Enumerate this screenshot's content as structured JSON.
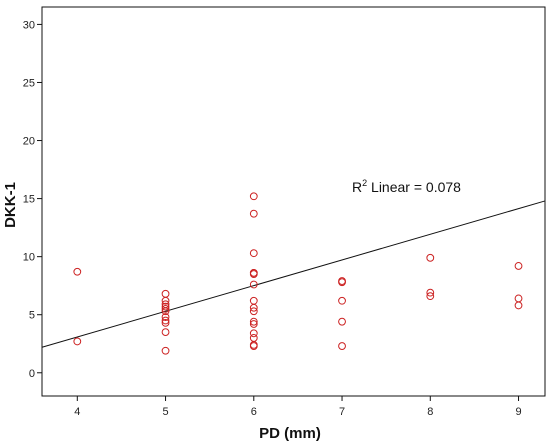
{
  "chart_data": {
    "type": "scatter",
    "title": "",
    "xlabel": "PD (mm)",
    "ylabel": "DKK-1",
    "xlim": [
      3.6,
      9.3
    ],
    "ylim": [
      -2,
      31.5
    ],
    "x_ticks": [
      4,
      5,
      6,
      7,
      8,
      9
    ],
    "y_ticks": [
      0,
      5,
      10,
      15,
      20,
      25,
      30
    ],
    "grid": false,
    "legend": "none",
    "marker_color": "#cc2222",
    "line_color": "#111111",
    "x": [
      4,
      4,
      5,
      5,
      5,
      5,
      5,
      5,
      5,
      5,
      5,
      5,
      5,
      6,
      6,
      6,
      6,
      6,
      6,
      6,
      6,
      6,
      6,
      6,
      6,
      6,
      6,
      6,
      6,
      7,
      7,
      7,
      7,
      7,
      8,
      8,
      8,
      9,
      9,
      9
    ],
    "y": [
      8.7,
      2.7,
      6.8,
      6.2,
      5.7,
      5.5,
      5.3,
      4.8,
      4.5,
      4.3,
      3.5,
      1.9,
      5.9,
      15.2,
      13.7,
      10.3,
      8.6,
      8.5,
      7.6,
      5.6,
      5.3,
      4.4,
      4.2,
      3.4,
      3.0,
      2.4,
      2.3,
      8.6,
      6.2,
      7.9,
      7.8,
      6.2,
      4.4,
      2.3,
      9.9,
      6.9,
      6.6,
      9.2,
      6.4,
      5.8
    ],
    "fit_line": {
      "label": "R",
      "label_sup": "2",
      "label_rest": " Linear = 0.078",
      "x": [
        3.6,
        9.3
      ],
      "y": [
        2.2,
        14.8
      ]
    }
  }
}
